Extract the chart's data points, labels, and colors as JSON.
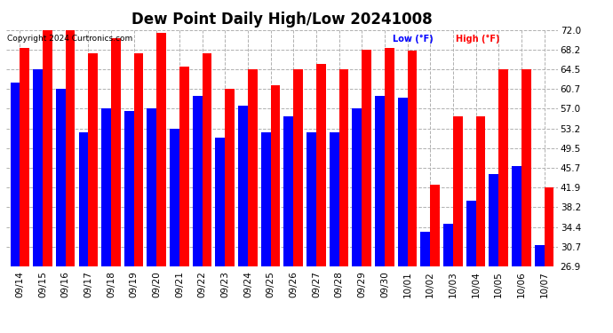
{
  "title": "Dew Point Daily High/Low 20241008",
  "copyright": "Copyright 2024 Curtronics.com",
  "legend_low": "Low (°F)",
  "legend_high": "High (°F)",
  "dates": [
    "09/14",
    "09/15",
    "09/16",
    "09/17",
    "09/18",
    "09/19",
    "09/20",
    "09/21",
    "09/22",
    "09/23",
    "09/24",
    "09/25",
    "09/26",
    "09/27",
    "09/28",
    "09/29",
    "09/30",
    "10/01",
    "10/02",
    "10/03",
    "10/04",
    "10/05",
    "10/06",
    "10/07"
  ],
  "high": [
    68.5,
    72.0,
    72.0,
    67.5,
    70.5,
    67.5,
    71.5,
    65.0,
    67.5,
    60.7,
    64.5,
    61.5,
    64.5,
    65.5,
    64.5,
    68.2,
    68.5,
    68.0,
    42.5,
    55.5,
    55.5,
    64.5,
    64.5,
    41.9
  ],
  "low": [
    62.0,
    64.5,
    60.7,
    52.5,
    57.0,
    56.5,
    57.0,
    53.2,
    59.5,
    51.5,
    57.5,
    52.5,
    55.5,
    52.5,
    52.5,
    57.0,
    59.5,
    59.0,
    33.5,
    35.0,
    39.5,
    44.5,
    46.0,
    31.0
  ],
  "ylim_min": 26.9,
  "ylim_max": 72.0,
  "yticks": [
    26.9,
    30.7,
    34.4,
    38.2,
    41.9,
    45.7,
    49.5,
    53.2,
    57.0,
    60.7,
    64.5,
    68.2,
    72.0
  ],
  "high_color": "#ff0000",
  "low_color": "#0000ff",
  "bg_color": "#ffffff",
  "grid_color": "#b0b0b0",
  "title_fontsize": 12,
  "tick_fontsize": 7.5,
  "annot_fontsize": 7.0
}
